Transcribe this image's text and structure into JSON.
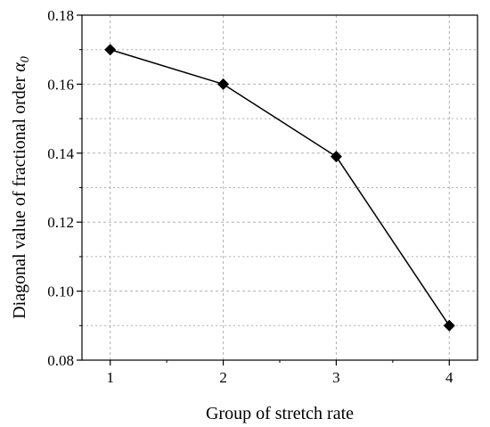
{
  "chart_data": {
    "type": "line",
    "title": "",
    "xlabel": "Group of stretch rate",
    "ylabel": {
      "text": "Diagonal value of fractional order ",
      "symbol": "α",
      "subscript": "0"
    },
    "x": [
      1,
      2,
      3,
      4
    ],
    "xticks": [
      1,
      2,
      3,
      4
    ],
    "xlim": [
      0.75,
      4.25
    ],
    "ylim": [
      0.08,
      0.18
    ],
    "yticks": [
      0.08,
      0.1,
      0.12,
      0.14,
      0.16,
      0.18
    ],
    "ytick_labels": [
      "0.08",
      "0.10",
      "0.12",
      "0.14",
      "0.16",
      "0.18"
    ],
    "series": [
      {
        "values": [
          0.17,
          0.16,
          0.139,
          0.09
        ],
        "marker": "diamond",
        "color": "#000000"
      }
    ],
    "grid": true,
    "grid_color": "#b0b0b0",
    "legend": false
  }
}
